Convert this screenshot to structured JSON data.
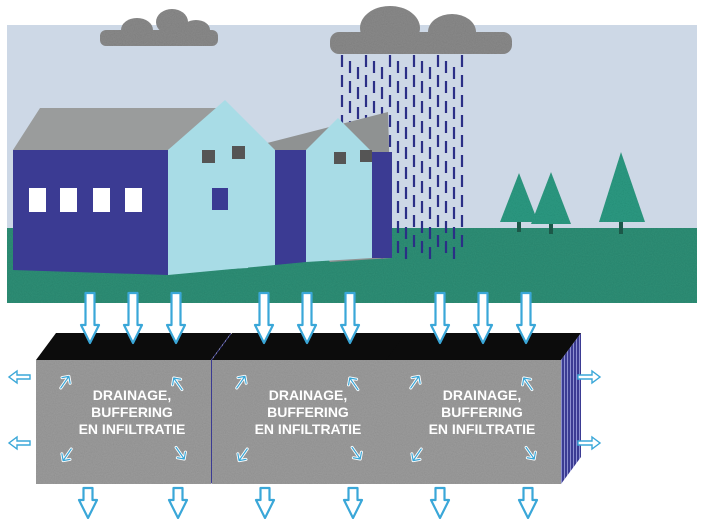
{
  "blocks": [
    {
      "lines": [
        "DRAINAGE,",
        "BUFFERING",
        "EN INFILTRATIE"
      ]
    },
    {
      "lines": [
        "DRAINAGE,",
        "BUFFERING",
        "EN INFILTRATIE"
      ]
    },
    {
      "lines": [
        "DRAINAGE,",
        "BUFFERING",
        "EN INFILTRATIE"
      ]
    }
  ],
  "colors": {
    "sky": "#cdd8e6",
    "ground": "#2e8f76",
    "building_dark": "#3b3b93",
    "building_light": "#a8dce6",
    "roof": "#8f9292",
    "rain": "#2b2f86",
    "cloud": "#8a8a8a",
    "tree": "#2b9a82",
    "block_face": "#9c9c9c",
    "block_top": "#0c0c0c",
    "arrow": "#3aa7d8"
  },
  "icons": {
    "down_arrow": "arrow-down-icon",
    "side_arrow": "arrow-side-icon",
    "corner_arrow": "corner-arrow-icon"
  }
}
